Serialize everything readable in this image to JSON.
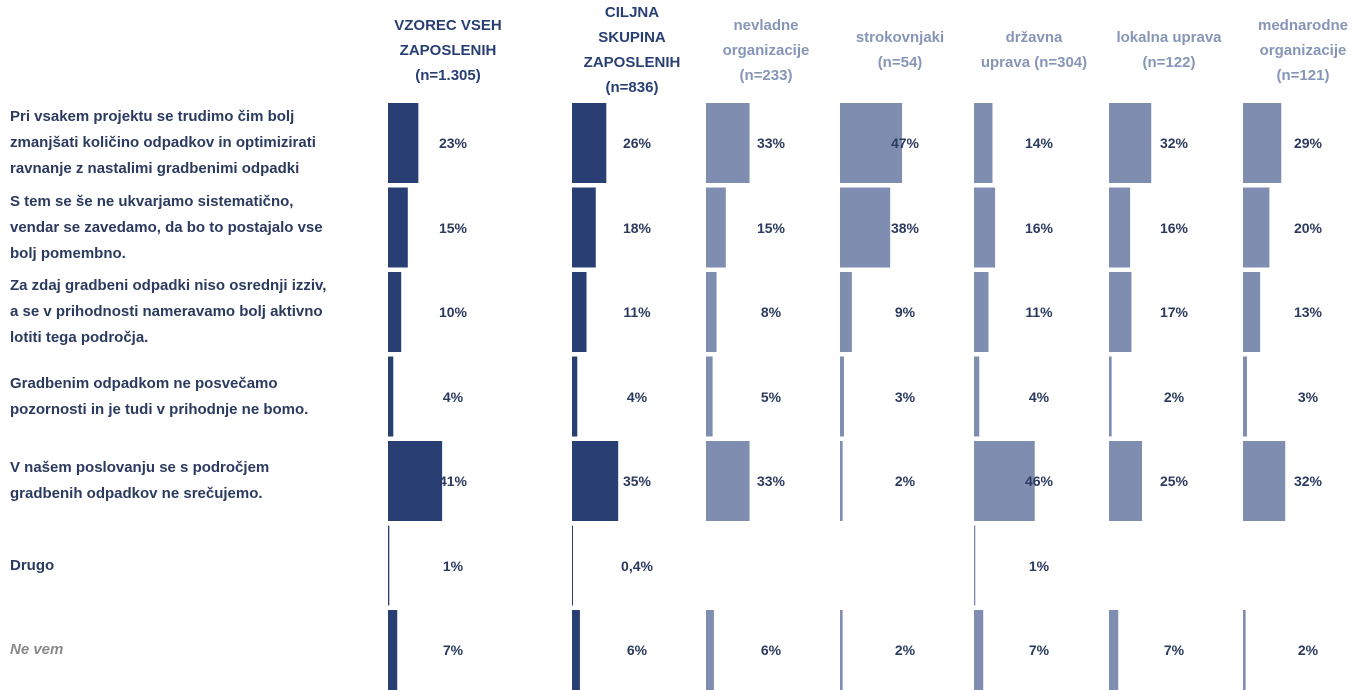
{
  "chart_data": {
    "type": "bar",
    "categories": [
      "Pri vsakem projektu se trudimo čim bolj\nzmanjšati količino odpadkov in optimizirati\nravnanje z nastalimi gradbenimi odpadki",
      "S tem se še ne ukvarjamo sistematično,\nvendar se zavedamo, da bo to postajalo vse\nbolj pomembno.",
      "Za zdaj gradbeni odpadki niso osrednji izziv,\na se v prihodnosti nameravamo bolj aktivno\nlotiti tega področja.",
      "Gradbenim odpadkom ne posvečamo\npozornosti in je tudi v prihodnje ne bomo.",
      "V našem poslovanju se s področjem\ngradbenih odpadkov ne srečujemo.",
      "Drugo",
      "Ne vem"
    ],
    "series": [
      {
        "name": "VZOREC VSEH\nZAPOSLENIH\n(n=1.305)",
        "color": "#293f74",
        "values": [
          23,
          15,
          10,
          4,
          41,
          1,
          7
        ],
        "value_labels": [
          "23%",
          "15%",
          "10%",
          "4%",
          "41%",
          "1%",
          "7%"
        ]
      },
      {
        "name": "CILJNA\nSKUPINA\nZAPOSLENIH\n(n=836)",
        "color": "#293f74",
        "values": [
          26,
          18,
          11,
          4,
          35,
          0.4,
          6
        ],
        "value_labels": [
          "26%",
          "18%",
          "11%",
          "4%",
          "35%",
          "0,4%",
          "6%"
        ]
      },
      {
        "name": "nevladne\norganizacije\n(n=233)",
        "color": "#7f8db1",
        "values": [
          33,
          15,
          8,
          5,
          33,
          null,
          6
        ],
        "value_labels": [
          "33%",
          "15%",
          "8%",
          "5%",
          "33%",
          null,
          "6%"
        ]
      },
      {
        "name": "strokovnjaki\n(n=54)",
        "color": "#7f8db1",
        "values": [
          47,
          38,
          9,
          3,
          2,
          null,
          2
        ],
        "value_labels": [
          "47%",
          "38%",
          "9%",
          "3%",
          "2%",
          null,
          "2%"
        ]
      },
      {
        "name": "državna\nuprava (n=304)",
        "color": "#7f8db1",
        "values": [
          14,
          16,
          11,
          4,
          46,
          1,
          7
        ],
        "value_labels": [
          "14%",
          "16%",
          "11%",
          "4%",
          "46%",
          "1%",
          "7%"
        ]
      },
      {
        "name": "lokalna uprava\n(n=122)",
        "color": "#7f8db1",
        "values": [
          32,
          16,
          17,
          2,
          25,
          null,
          7
        ],
        "value_labels": [
          "32%",
          "16%",
          "17%",
          "2%",
          "25%",
          null,
          "7%"
        ]
      },
      {
        "name": "mednarodne\norganizacije\n(n=121)",
        "color": "#7f8db1",
        "values": [
          29,
          20,
          13,
          3,
          32,
          null,
          2
        ],
        "value_labels": [
          "29%",
          "20%",
          "13%",
          "3%",
          "32%",
          null,
          "2%"
        ]
      }
    ]
  }
}
